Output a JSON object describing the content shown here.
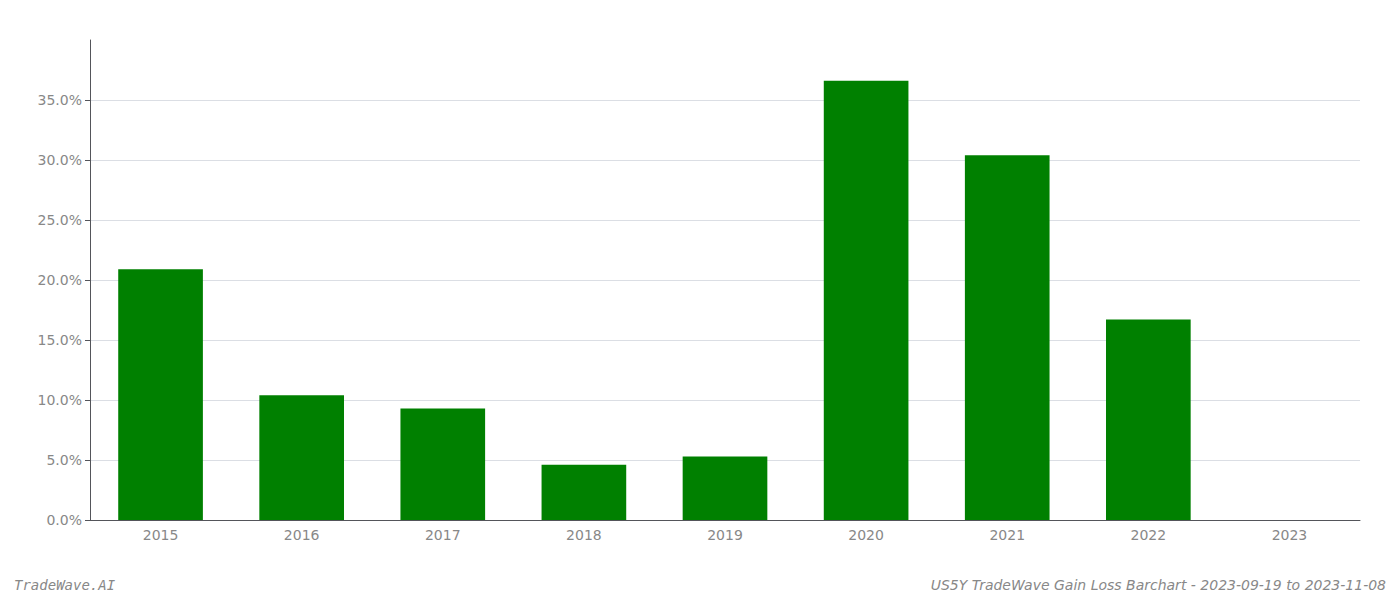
{
  "chart_data": {
    "type": "bar",
    "categories": [
      "2015",
      "2016",
      "2017",
      "2018",
      "2019",
      "2020",
      "2021",
      "2022",
      "2023"
    ],
    "values": [
      0.209,
      0.104,
      0.093,
      0.046,
      0.053,
      0.366,
      0.304,
      0.167,
      0.0
    ],
    "color": "#008000",
    "ylim": [
      0,
      0.4
    ],
    "yticks": [
      {
        "value": 0.0,
        "label": "0.0%"
      },
      {
        "value": 0.05,
        "label": "5.0%"
      },
      {
        "value": 0.1,
        "label": "10.0%"
      },
      {
        "value": 0.15,
        "label": "15.0%"
      },
      {
        "value": 0.2,
        "label": "20.0%"
      },
      {
        "value": 0.25,
        "label": "25.0%"
      },
      {
        "value": 0.3,
        "label": "30.0%"
      },
      {
        "value": 0.35,
        "label": "35.0%"
      }
    ],
    "grid": true,
    "annotations": [
      "TradeWave.AI",
      "US5Y TradeWave Gain Loss Barchart - 2023-09-19 to 2023-11-08"
    ]
  }
}
